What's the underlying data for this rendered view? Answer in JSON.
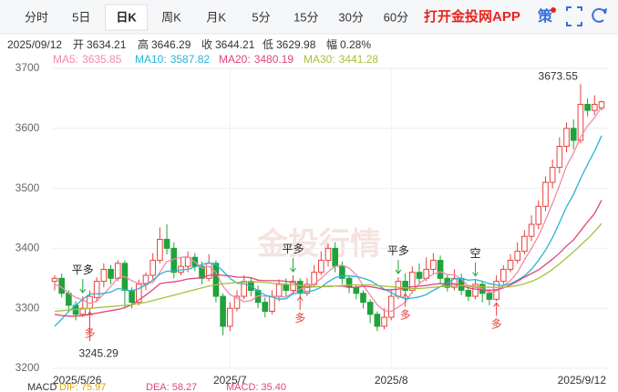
{
  "tabs": [
    {
      "label": "分时"
    },
    {
      "label": "5日"
    },
    {
      "label": "日K",
      "active": true
    },
    {
      "label": "周K"
    },
    {
      "label": "月K"
    },
    {
      "label": "5分"
    },
    {
      "label": "15分"
    },
    {
      "label": "30分"
    },
    {
      "label": "60分"
    }
  ],
  "app_link": "打开金投网APP",
  "strategy": "策",
  "quote": {
    "date": "2025/09/12",
    "open_label": "开",
    "high_label": "高",
    "close_label": "收",
    "low_label": "低",
    "amplitude_label": "幅",
    "amplitude": "0.28%"
  },
  "macd": {
    "title": "MACD",
    "dif": "DIF: 75.97",
    "dea": "DEA: 58.27",
    "macd": "MACD: 35.40"
  },
  "chart_data": {
    "type": "candlestick",
    "watermark": "金投行情",
    "up_color": "#e8413c",
    "down_color": "#1fa33a",
    "ylim": [
      3200,
      3700
    ],
    "yticks": [
      3200,
      3300,
      3400,
      3500,
      3600,
      3700
    ],
    "grid": true,
    "categories": [
      "2025/5/26",
      null,
      null,
      null,
      null,
      null,
      null,
      null,
      null,
      null,
      null,
      null,
      null,
      null,
      null,
      null,
      null,
      null,
      null,
      null,
      null,
      null,
      null,
      null,
      null,
      "2025/7",
      null,
      null,
      null,
      null,
      null,
      null,
      null,
      null,
      null,
      null,
      null,
      null,
      null,
      null,
      null,
      null,
      null,
      null,
      null,
      null,
      null,
      null,
      "2025/8",
      null,
      null,
      null,
      null,
      null,
      null,
      null,
      null,
      null,
      null,
      null,
      null,
      null,
      null,
      null,
      null,
      null,
      null,
      null,
      null,
      null,
      null,
      null,
      null,
      null,
      null,
      null,
      null,
      null,
      "2025/9/12"
    ],
    "open": [
      3345,
      3350,
      3325,
      3305,
      3290,
      3300,
      3318,
      3345,
      3365,
      3350,
      3375,
      3330,
      3310,
      3340,
      3355,
      3380,
      3415,
      3400,
      3360,
      3370,
      3385,
      3370,
      3350,
      3375,
      3320,
      3270,
      3300,
      3320,
      3345,
      3330,
      3310,
      3295,
      3320,
      3340,
      3330,
      3345,
      3325,
      3340,
      3360,
      3380,
      3400,
      3370,
      3350,
      3335,
      3325,
      3310,
      3290,
      3270,
      3285,
      3320,
      3345,
      3330,
      3360,
      3350,
      3365,
      3380,
      3350,
      3335,
      3350,
      3330,
      3320,
      3340,
      3325,
      3315,
      3345,
      3365,
      3380,
      3395,
      3420,
      3440,
      3470,
      3510,
      3535,
      3570,
      3600,
      3580,
      3640,
      3630,
      3634.21
    ],
    "high": [
      3355,
      3358,
      3330,
      3312,
      3320,
      3330,
      3352,
      3375,
      3372,
      3380,
      3380,
      3335,
      3348,
      3360,
      3392,
      3435,
      3440,
      3410,
      3385,
      3395,
      3392,
      3378,
      3390,
      3380,
      3325,
      3310,
      3330,
      3355,
      3352,
      3338,
      3318,
      3330,
      3348,
      3350,
      3355,
      3350,
      3350,
      3372,
      3395,
      3408,
      3410,
      3378,
      3355,
      3340,
      3330,
      3315,
      3295,
      3300,
      3330,
      3352,
      3358,
      3370,
      3375,
      3385,
      3392,
      3388,
      3355,
      3365,
      3358,
      3338,
      3348,
      3345,
      3332,
      3355,
      3372,
      3390,
      3410,
      3430,
      3455,
      3480,
      3520,
      3548,
      3585,
      3610,
      3615,
      3673.55,
      3650,
      3655,
      3646.29
    ],
    "low": [
      3330,
      3318,
      3295,
      3280,
      3285,
      3245.29,
      3310,
      3335,
      3340,
      3345,
      3300,
      3300,
      3305,
      3330,
      3348,
      3375,
      3390,
      3350,
      3355,
      3360,
      3362,
      3340,
      3345,
      3310,
      3255,
      3262,
      3295,
      3315,
      3320,
      3300,
      3285,
      3290,
      3312,
      3320,
      3325,
      3318,
      3320,
      3335,
      3355,
      3370,
      3360,
      3340,
      3325,
      3315,
      3300,
      3275,
      3262,
      3265,
      3280,
      3315,
      3322,
      3325,
      3340,
      3345,
      3358,
      3340,
      3328,
      3330,
      3322,
      3312,
      3315,
      3310,
      3305,
      3312,
      3340,
      3360,
      3375,
      3390,
      3412,
      3432,
      3462,
      3500,
      3525,
      3560,
      3565,
      3575,
      3620,
      3622,
      3629.98
    ],
    "close": [
      3350,
      3325,
      3305,
      3290,
      3300,
      3320,
      3345,
      3365,
      3350,
      3375,
      3330,
      3310,
      3340,
      3355,
      3380,
      3415,
      3400,
      3360,
      3370,
      3385,
      3370,
      3350,
      3375,
      3320,
      3270,
      3300,
      3320,
      3345,
      3330,
      3310,
      3295,
      3320,
      3340,
      3330,
      3345,
      3325,
      3340,
      3360,
      3380,
      3400,
      3370,
      3350,
      3335,
      3325,
      3310,
      3290,
      3270,
      3285,
      3320,
      3345,
      3330,
      3360,
      3350,
      3365,
      3380,
      3350,
      3335,
      3350,
      3330,
      3320,
      3340,
      3325,
      3315,
      3345,
      3365,
      3380,
      3395,
      3420,
      3440,
      3470,
      3510,
      3535,
      3570,
      3600,
      3580,
      3640,
      3630,
      3640,
      3644.21
    ],
    "series": [
      {
        "name": "MA5:",
        "color": "#f08aa6",
        "values": [
          3340,
          3335,
          3325,
          3318,
          3314,
          3308,
          3312,
          3324,
          3336,
          3351,
          3353,
          3346,
          3341,
          3342,
          3343,
          3360,
          3378,
          3382,
          3385,
          3386,
          3377,
          3367,
          3370,
          3360,
          3337,
          3323,
          3317,
          3311,
          3313,
          3321,
          3320,
          3320,
          3319,
          3319,
          3326,
          3332,
          3336,
          3340,
          3350,
          3361,
          3370,
          3372,
          3367,
          3356,
          3338,
          3322,
          3306,
          3296,
          3295,
          3302,
          3310,
          3328,
          3341,
          3350,
          3357,
          3361,
          3356,
          3356,
          3349,
          3337,
          3335,
          3333,
          3326,
          3329,
          3338,
          3346,
          3360,
          3381,
          3400,
          3421,
          3447,
          3475,
          3505,
          3537,
          3559,
          3585,
          3604,
          3618,
          3635.85
        ]
      },
      {
        "name": "MA10:",
        "color": "#29b4d8",
        "values": [
          3270,
          3282,
          3295,
          3305,
          3315,
          3324,
          3324,
          3325,
          3327,
          3333,
          3331,
          3329,
          3333,
          3339,
          3347,
          3357,
          3362,
          3362,
          3364,
          3365,
          3369,
          3373,
          3376,
          3373,
          3362,
          3350,
          3342,
          3341,
          3337,
          3329,
          3322,
          3319,
          3315,
          3316,
          3324,
          3326,
          3328,
          3330,
          3335,
          3344,
          3351,
          3354,
          3354,
          3353,
          3350,
          3346,
          3339,
          3332,
          3326,
          3320,
          3316,
          3317,
          3319,
          3323,
          3330,
          3336,
          3342,
          3349,
          3350,
          3347,
          3348,
          3345,
          3341,
          3339,
          3338,
          3341,
          3347,
          3354,
          3365,
          3380,
          3397,
          3418,
          3443,
          3469,
          3490,
          3516,
          3540,
          3562,
          3587.82
        ]
      },
      {
        "name": "MA20:",
        "color": "#e0447c",
        "values": [
          3290,
          3288,
          3287,
          3287,
          3288,
          3290,
          3292,
          3294,
          3296,
          3298,
          3301,
          3306,
          3314,
          3322,
          3331,
          3341,
          3343,
          3344,
          3346,
          3349,
          3350,
          3351,
          3355,
          3356,
          3355,
          3354,
          3352,
          3352,
          3351,
          3347,
          3346,
          3346,
          3346,
          3345,
          3343,
          3338,
          3335,
          3336,
          3336,
          3337,
          3337,
          3337,
          3335,
          3335,
          3337,
          3336,
          3334,
          3331,
          3331,
          3332,
          3334,
          3336,
          3337,
          3338,
          3340,
          3341,
          3341,
          3341,
          3338,
          3334,
          3332,
          3331,
          3330,
          3331,
          3334,
          3339,
          3345,
          3352,
          3358,
          3364,
          3373,
          3382,
          3392,
          3404,
          3414,
          3429,
          3444,
          3458,
          3480.19
        ]
      },
      {
        "name": "MA30:",
        "color": "#a6c23c",
        "values": [
          3295,
          3296,
          3297,
          3298,
          3299,
          3300,
          3301,
          3302,
          3303,
          3304,
          3305,
          3306,
          3308,
          3310,
          3313,
          3316,
          3319,
          3322,
          3325,
          3328,
          3331,
          3334,
          3337,
          3339,
          3341,
          3342,
          3343,
          3344,
          3344,
          3344,
          3343,
          3342,
          3341,
          3340,
          3339,
          3338,
          3337,
          3336,
          3336,
          3336,
          3337,
          3338,
          3339,
          3339,
          3339,
          3339,
          3338,
          3337,
          3336,
          3335,
          3334,
          3333,
          3333,
          3334,
          3335,
          3336,
          3337,
          3338,
          3338,
          3338,
          3337,
          3336,
          3335,
          3335,
          3335,
          3336,
          3338,
          3341,
          3345,
          3350,
          3357,
          3365,
          3374,
          3384,
          3394,
          3405,
          3416,
          3428,
          3441.28
        ]
      }
    ],
    "signals_above": [
      null,
      null,
      null,
      null,
      "平多",
      null,
      null,
      null,
      null,
      null,
      null,
      null,
      null,
      null,
      null,
      null,
      null,
      null,
      null,
      null,
      null,
      null,
      null,
      null,
      null,
      null,
      null,
      null,
      null,
      null,
      null,
      null,
      null,
      null,
      "平多",
      null,
      null,
      null,
      null,
      null,
      null,
      null,
      null,
      null,
      null,
      null,
      null,
      null,
      null,
      "平多",
      null,
      null,
      null,
      null,
      null,
      null,
      null,
      null,
      null,
      null,
      "空",
      null,
      null,
      null,
      null,
      null,
      null,
      null,
      null,
      null,
      null,
      null,
      null,
      null,
      null,
      null,
      null,
      null,
      null
    ],
    "signals_below": [
      null,
      null,
      null,
      null,
      null,
      "多",
      null,
      null,
      null,
      null,
      null,
      null,
      null,
      null,
      null,
      null,
      null,
      null,
      null,
      null,
      null,
      null,
      null,
      null,
      null,
      null,
      null,
      null,
      null,
      null,
      null,
      null,
      null,
      null,
      null,
      "多",
      null,
      null,
      null,
      null,
      null,
      null,
      null,
      null,
      null,
      null,
      null,
      null,
      null,
      null,
      "多",
      null,
      null,
      null,
      null,
      null,
      null,
      null,
      null,
      null,
      null,
      null,
      null,
      "多",
      null,
      null,
      null,
      null,
      null,
      null,
      null,
      null,
      null,
      null,
      null,
      null,
      null,
      null,
      null
    ]
  }
}
